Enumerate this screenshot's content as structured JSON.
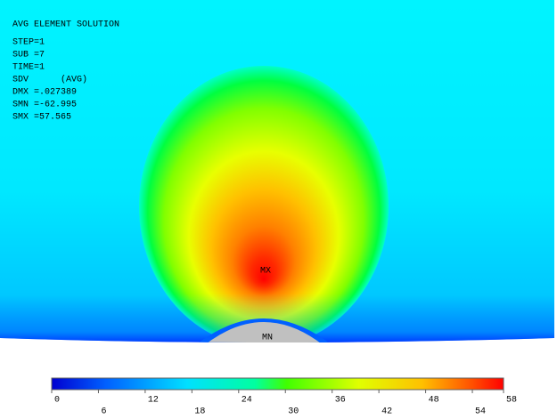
{
  "header": {
    "lines": [
      "AVG ELEMENT SOLUTION",
      "STEP=1",
      "SUB =7",
      "TIME=1",
      "SDV      (AVG)",
      "DMX =.027389",
      "SMN =-62.995",
      "SMX =57.565"
    ]
  },
  "plot": {
    "max_label": "MX",
    "min_label": "MN"
  },
  "colorbar": {
    "ticks": [
      0,
      6,
      12,
      18,
      24,
      30,
      36,
      42,
      48,
      54,
      58
    ]
  }
}
